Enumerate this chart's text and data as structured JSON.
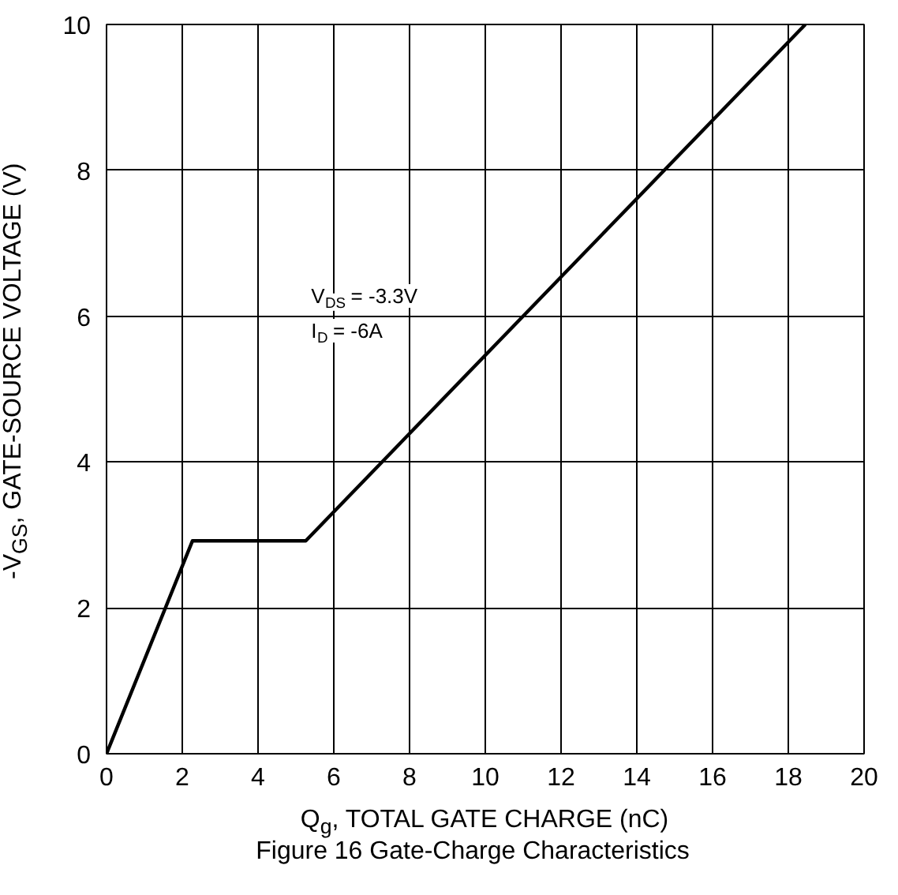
{
  "chart_data": {
    "type": "line",
    "title": "Figure 16 Gate-Charge Characteristics",
    "xlabel": "Q$_{g}$, TOTAL GATE CHARGE (nC)",
    "ylabel": "-V$_{GS}$, GATE-SOURCE VOLTAGE (V)",
    "annotations": [
      "V$_{DS}$ = -3.3V",
      "I$_{D}$ = -6A"
    ],
    "x": [
      0,
      2.27,
      5.26,
      18.45
    ],
    "series": [
      {
        "color": "#000000",
        "values": [
          0,
          2.92,
          2.92,
          10
        ]
      }
    ],
    "xlim": [
      0,
      20
    ],
    "ylim": [
      0,
      10
    ],
    "xticks": [
      0,
      2,
      4,
      6,
      8,
      10,
      12,
      14,
      16,
      18,
      20
    ],
    "yticks": [
      0,
      2,
      4,
      6,
      8,
      10
    ],
    "grid": true,
    "marker": "none",
    "line_style": "solid"
  }
}
